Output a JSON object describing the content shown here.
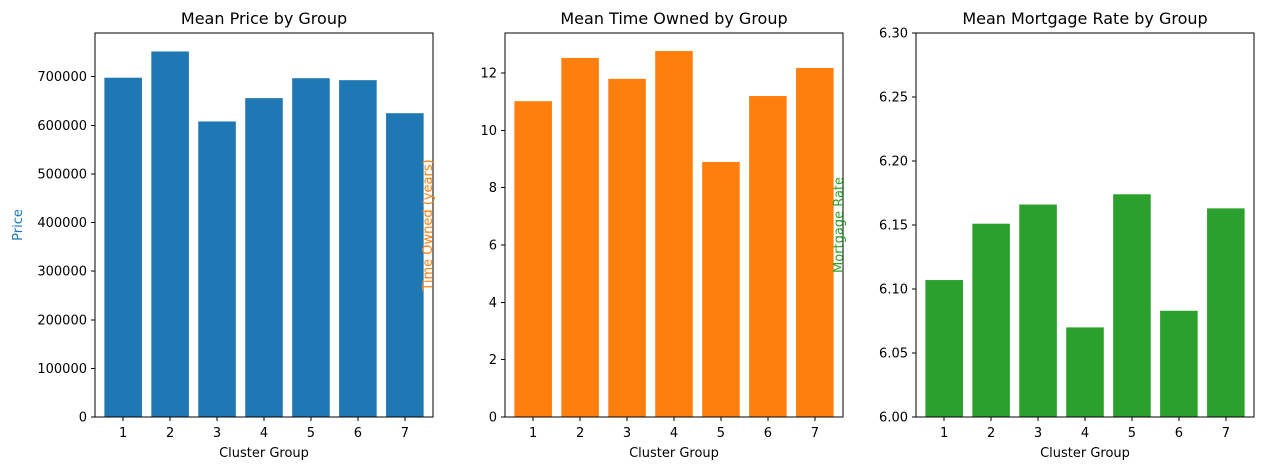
{
  "chart_data": [
    {
      "type": "bar",
      "title": "Mean Price by Group",
      "xlabel": "Cluster Group",
      "ylabel": "Price",
      "color": "#1f77b4",
      "ylabel_color": "#1f77b4",
      "categories": [
        "1",
        "2",
        "3",
        "4",
        "5",
        "6",
        "7"
      ],
      "values": [
        698000,
        752000,
        608000,
        656000,
        697000,
        693000,
        625000
      ],
      "ylim": [
        0,
        790000
      ],
      "yticks": [
        0,
        100000,
        200000,
        300000,
        400000,
        500000,
        600000,
        700000
      ],
      "ytick_labels": [
        "0",
        "100000",
        "200000",
        "300000",
        "400000",
        "500000",
        "600000",
        "700000"
      ],
      "grid": false
    },
    {
      "type": "bar",
      "title": "Mean Time Owned by Group",
      "xlabel": "Cluster Group",
      "ylabel": "Time Owned (years)",
      "color": "#ff7f0e",
      "ylabel_color": "#ff7f0e",
      "categories": [
        "1",
        "2",
        "3",
        "4",
        "5",
        "6",
        "7"
      ],
      "values": [
        11.02,
        12.53,
        11.8,
        12.77,
        8.9,
        11.2,
        12.18
      ],
      "ylim": [
        0,
        13.4
      ],
      "yticks": [
        0,
        2,
        4,
        6,
        8,
        10,
        12
      ],
      "ytick_labels": [
        "0",
        "2",
        "4",
        "6",
        "8",
        "10",
        "12"
      ],
      "grid": false
    },
    {
      "type": "bar",
      "title": "Mean Mortgage Rate by Group",
      "xlabel": "Cluster Group",
      "ylabel": "Mortgage Rate",
      "color": "#2ca02c",
      "ylabel_color": "#2ca02c",
      "categories": [
        "1",
        "2",
        "3",
        "4",
        "5",
        "6",
        "7"
      ],
      "values": [
        6.107,
        6.151,
        6.166,
        6.07,
        6.174,
        6.083,
        6.163
      ],
      "ylim": [
        6.0,
        6.3
      ],
      "yticks": [
        6.0,
        6.05,
        6.1,
        6.15,
        6.2,
        6.25,
        6.3
      ],
      "ytick_labels": [
        "6.00",
        "6.05",
        "6.10",
        "6.15",
        "6.20",
        "6.25",
        "6.30"
      ],
      "grid": false
    }
  ]
}
